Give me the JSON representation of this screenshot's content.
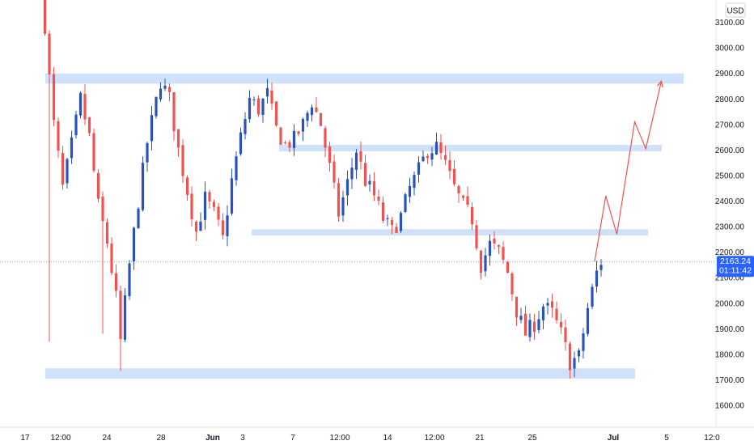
{
  "currency_badge": "USD",
  "colors": {
    "up": "#2a52be",
    "down": "#ef5350",
    "zone": "#c8dcfb",
    "projection": "#ef5350",
    "price_tag": "#2962ff",
    "crosshair": "#2962ff",
    "axis_text": "#131722"
  },
  "price_tag": {
    "price": "2163.24",
    "countdown": "01:11:42"
  },
  "chart_data": {
    "type": "candlestick",
    "title": "",
    "xlabel": "",
    "ylabel": "",
    "x_axis_ticks": [
      "17",
      "12:00",
      "24",
      "28",
      "Jun",
      "3",
      "7",
      "12:00",
      "14",
      "12:00",
      "21",
      "25",
      "Jul",
      "5",
      "12:0"
    ],
    "y_axis_ticks": [
      1600,
      1700,
      1800,
      1900,
      2000,
      2100,
      2200,
      2300,
      2400,
      2500,
      2600,
      2700,
      2800,
      2900,
      3000,
      3100
    ],
    "y_axis_labels": [
      "1600.00",
      "1700.00",
      "1800.00",
      "1900.00",
      "2000.00",
      "2100.00",
      "2200.00",
      "2300.00",
      "2400.00",
      "2500.00",
      "2600.00",
      "2700.00",
      "2800.00",
      "2900.00",
      "3000.00",
      "3100.00"
    ],
    "ylim": [
      1525,
      3150
    ],
    "last_price": 2163.24,
    "support_resistance_zones": [
      {
        "low": 2860,
        "high": 2900
      },
      {
        "low": 2595,
        "high": 2620
      },
      {
        "low": 2265,
        "high": 2290
      },
      {
        "low": 1705,
        "high": 1745
      }
    ],
    "close_path": [
      [
        0,
        3300
      ],
      [
        2,
        2880
      ],
      [
        3,
        2700
      ],
      [
        5,
        2450
      ],
      [
        7,
        2620
      ],
      [
        9,
        2800
      ],
      [
        11,
        2650
      ],
      [
        13,
        2380
      ],
      [
        15,
        2240
      ],
      [
        17,
        2020
      ],
      [
        18,
        1850
      ],
      [
        20,
        2150
      ],
      [
        22,
        2400
      ],
      [
        24,
        2630
      ],
      [
        26,
        2790
      ],
      [
        27,
        2870
      ],
      [
        29,
        2800
      ],
      [
        31,
        2600
      ],
      [
        33,
        2440
      ],
      [
        35,
        2280
      ],
      [
        37,
        2410
      ],
      [
        39,
        2350
      ],
      [
        41,
        2250
      ],
      [
        43,
        2480
      ],
      [
        45,
        2650
      ],
      [
        47,
        2800
      ],
      [
        49,
        2760
      ],
      [
        51,
        2820
      ],
      [
        53,
        2680
      ],
      [
        55,
        2620
      ],
      [
        57,
        2640
      ],
      [
        59,
        2700
      ],
      [
        61,
        2790
      ],
      [
        63,
        2700
      ],
      [
        65,
        2530
      ],
      [
        67,
        2350
      ],
      [
        69,
        2470
      ],
      [
        71,
        2600
      ],
      [
        73,
        2480
      ],
      [
        75,
        2420
      ],
      [
        77,
        2330
      ],
      [
        79,
        2280
      ],
      [
        81,
        2340
      ],
      [
        83,
        2450
      ],
      [
        85,
        2520
      ],
      [
        87,
        2600
      ],
      [
        89,
        2610
      ],
      [
        91,
        2540
      ],
      [
        93,
        2450
      ],
      [
        95,
        2380
      ],
      [
        97,
        2330
      ],
      [
        99,
        2150
      ],
      [
        101,
        2230
      ],
      [
        103,
        2200
      ],
      [
        105,
        2120
      ],
      [
        107,
        1970
      ],
      [
        109,
        1880
      ],
      [
        111,
        1920
      ],
      [
        113,
        1990
      ],
      [
        115,
        1960
      ],
      [
        117,
        1880
      ],
      [
        119,
        1770
      ],
      [
        121,
        1790
      ],
      [
        123,
        1980
      ],
      [
        125,
        2120
      ],
      [
        126,
        2163
      ]
    ],
    "projection_path": [
      [
        2163,
        1
      ],
      [
        2420,
        3.5
      ],
      [
        2270,
        6
      ],
      [
        2710,
        10
      ],
      [
        2605,
        12.5
      ],
      [
        2870,
        16
      ]
    ]
  }
}
